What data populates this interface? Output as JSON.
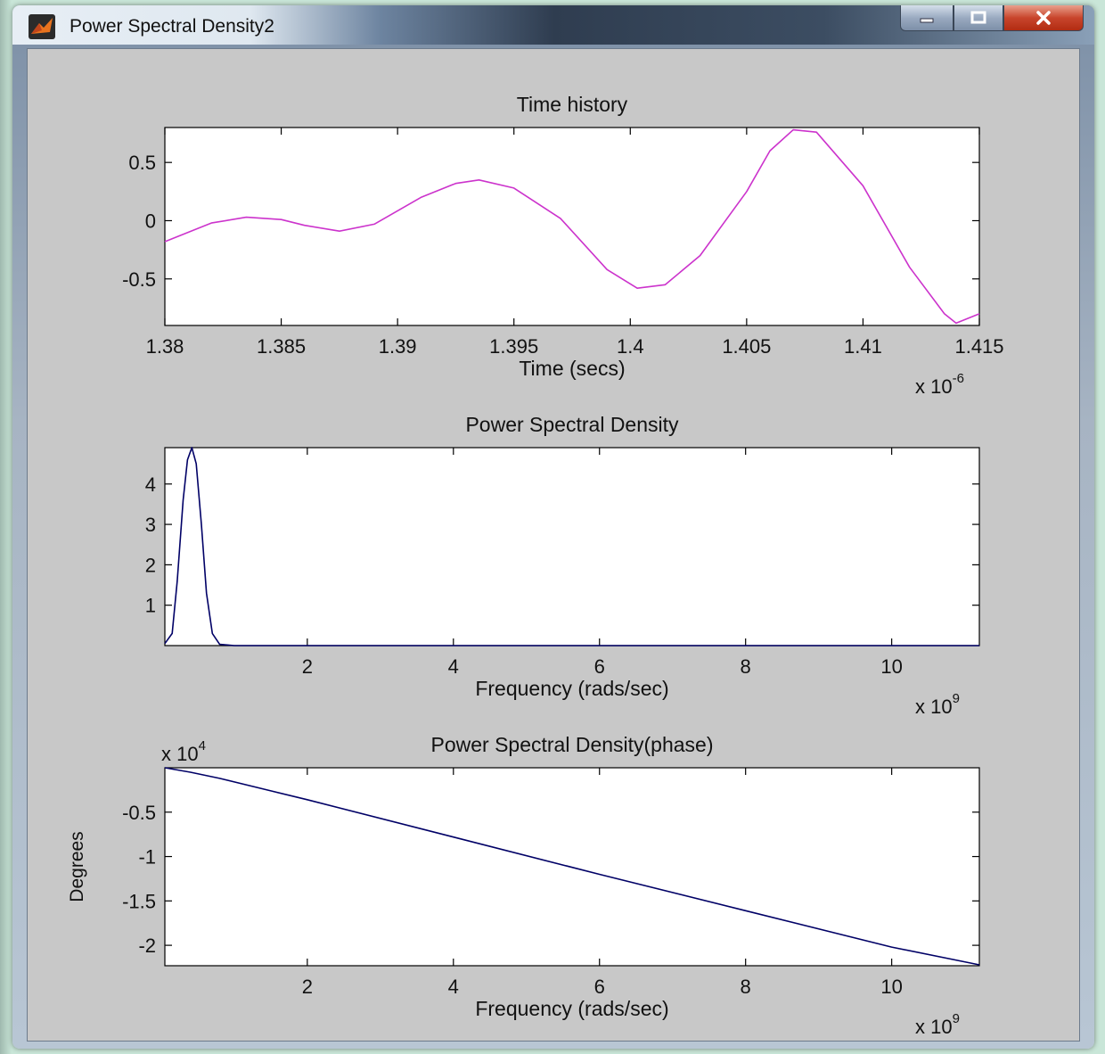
{
  "window": {
    "title": "Power Spectral Density2",
    "buttons": {
      "minimize": "minimize-icon",
      "maximize": "maximize-icon",
      "close": "close-icon"
    }
  },
  "colors": {
    "time_trace": "#cc33cc",
    "spectrum_trace": "#000066",
    "plot_bg": "#ffffff",
    "figure_bg": "#c8c8c8"
  },
  "chart_data": [
    {
      "type": "line",
      "title": "Time history",
      "xlabel": "Time (secs)",
      "ylabel": "",
      "x_multiplier": "x 10",
      "x_exponent": "-6",
      "xlim": [
        1.38,
        1.415
      ],
      "ylim": [
        -0.9,
        0.8
      ],
      "xticks": [
        "1.38",
        "1.385",
        "1.39",
        "1.395",
        "1.4",
        "1.405",
        "1.41",
        "1.415"
      ],
      "yticks": [
        "0.5",
        "0",
        "-0.5"
      ],
      "x": [
        1.38,
        1.382,
        1.3835,
        1.385,
        1.386,
        1.3875,
        1.389,
        1.391,
        1.3925,
        1.3935,
        1.395,
        1.397,
        1.399,
        1.4003,
        1.4015,
        1.403,
        1.405,
        1.406,
        1.407,
        1.408,
        1.41,
        1.412,
        1.4135,
        1.414,
        1.415
      ],
      "y": [
        -0.18,
        -0.02,
        0.03,
        0.01,
        -0.04,
        -0.09,
        -0.03,
        0.2,
        0.32,
        0.35,
        0.28,
        0.02,
        -0.42,
        -0.58,
        -0.55,
        -0.3,
        0.25,
        0.6,
        0.78,
        0.76,
        0.3,
        -0.4,
        -0.8,
        -0.88,
        -0.8
      ]
    },
    {
      "type": "line",
      "title": "Power Spectral Density",
      "xlabel": "Frequency (rads/sec)",
      "ylabel": "",
      "x_multiplier": "x 10",
      "x_exponent": "9",
      "xlim": [
        0.05,
        11.2
      ],
      "ylim": [
        0,
        4.9
      ],
      "xticks": [
        "2",
        "4",
        "6",
        "8",
        "10"
      ],
      "yticks": [
        "4",
        "3",
        "2",
        "1"
      ],
      "x": [
        0.05,
        0.15,
        0.22,
        0.3,
        0.36,
        0.42,
        0.48,
        0.55,
        0.62,
        0.7,
        0.8,
        1.0,
        2.0,
        4.0,
        6.0,
        8.0,
        10.0,
        11.2
      ],
      "y": [
        0.05,
        0.3,
        1.6,
        3.6,
        4.6,
        4.9,
        4.5,
        3.0,
        1.3,
        0.3,
        0.03,
        0.0,
        0.0,
        0.0,
        0.0,
        0.0,
        0.0,
        0.0
      ]
    },
    {
      "type": "line",
      "title": "Power Spectral Density(phase)",
      "xlabel": "Frequency (rads/sec)",
      "ylabel": "Degrees",
      "x_multiplier": "x 10",
      "x_exponent": "9",
      "y_multiplier": "x 10",
      "y_exponent": "4",
      "xlim": [
        0.05,
        11.2
      ],
      "ylim": [
        -2.23,
        0
      ],
      "xticks": [
        "2",
        "4",
        "6",
        "8",
        "10"
      ],
      "yticks": [
        "-0.5",
        "-1",
        "-1.5",
        "-2"
      ],
      "x": [
        0.05,
        0.4,
        0.8,
        1.5,
        2.0,
        4.0,
        6.0,
        8.0,
        10.0,
        11.2
      ],
      "y": [
        0.0,
        -0.05,
        -0.12,
        -0.26,
        -0.36,
        -0.78,
        -1.2,
        -1.61,
        -2.02,
        -2.22
      ]
    }
  ]
}
